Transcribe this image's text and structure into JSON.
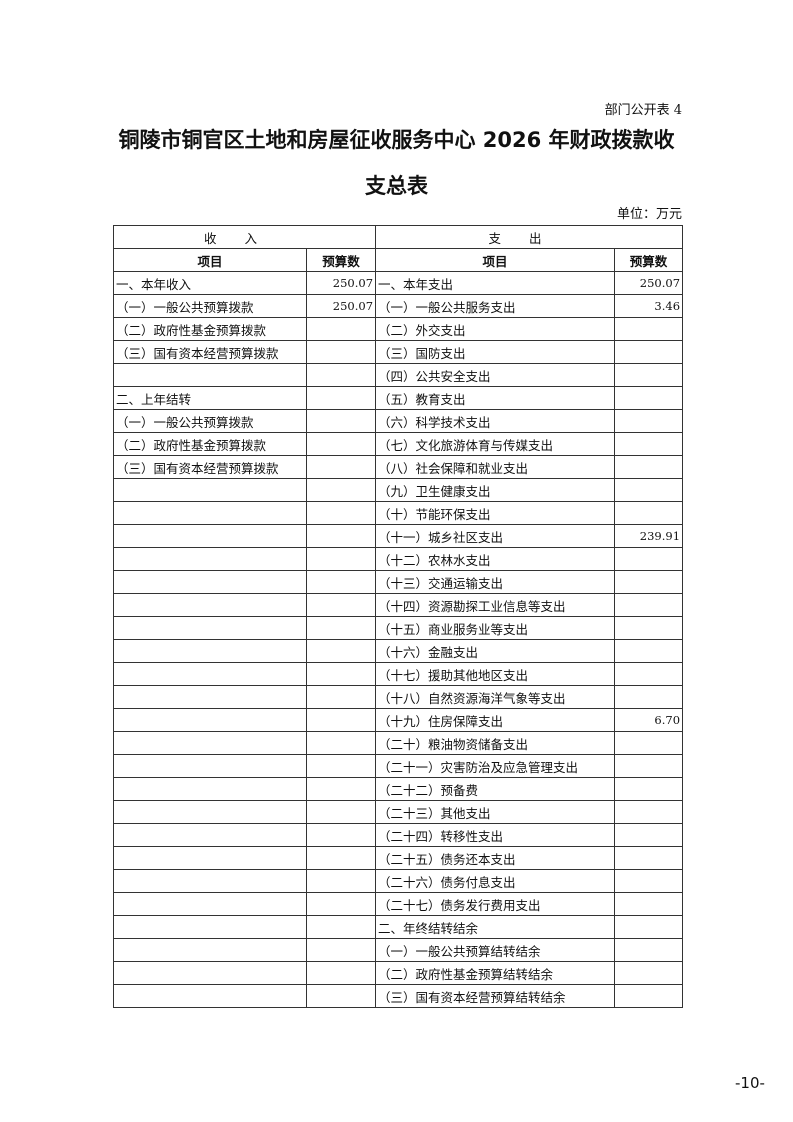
{
  "form_no": "部门公开表 4",
  "title_line1": "铜陵市铜官区土地和房屋征收服务中心 2026 年财政拨款收",
  "title_line2": "支总表",
  "unit": "单位：万元",
  "table": {
    "income_header": "收入",
    "expense_header": "支出",
    "col_item": "项目",
    "col_budget": "预算数",
    "rows": [
      {
        "in_item": "一、本年收入",
        "in_val": "250.07",
        "out_item": "一、本年支出",
        "out_val": "250.07"
      },
      {
        "in_item": "（一）一般公共预算拨款",
        "in_val": "250.07",
        "out_item": "（一）一般公共服务支出",
        "out_val": "3.46"
      },
      {
        "in_item": "（二）政府性基金预算拨款",
        "in_val": "",
        "out_item": "（二）外交支出",
        "out_val": ""
      },
      {
        "in_item": "（三）国有资本经营预算拨款",
        "in_val": "",
        "out_item": "（三）国防支出",
        "out_val": ""
      },
      {
        "in_item": "",
        "in_val": "",
        "out_item": "（四）公共安全支出",
        "out_val": ""
      },
      {
        "in_item": "二、上年结转",
        "in_val": "",
        "out_item": "（五）教育支出",
        "out_val": ""
      },
      {
        "in_item": "（一）一般公共预算拨款",
        "in_val": "",
        "out_item": "（六）科学技术支出",
        "out_val": ""
      },
      {
        "in_item": "（二）政府性基金预算拨款",
        "in_val": "",
        "out_item": "（七）文化旅游体育与传媒支出",
        "out_val": ""
      },
      {
        "in_item": "（三）国有资本经营预算拨款",
        "in_val": "",
        "out_item": "（八）社会保障和就业支出",
        "out_val": ""
      },
      {
        "in_item": "",
        "in_val": "",
        "out_item": "（九）卫生健康支出",
        "out_val": ""
      },
      {
        "in_item": "",
        "in_val": "",
        "out_item": "（十）节能环保支出",
        "out_val": ""
      },
      {
        "in_item": "",
        "in_val": "",
        "out_item": "（十一）城乡社区支出",
        "out_val": "239.91"
      },
      {
        "in_item": "",
        "in_val": "",
        "out_item": "（十二）农林水支出",
        "out_val": ""
      },
      {
        "in_item": "",
        "in_val": "",
        "out_item": "（十三）交通运输支出",
        "out_val": ""
      },
      {
        "in_item": "",
        "in_val": "",
        "out_item": "（十四）资源勘探工业信息等支出",
        "out_val": ""
      },
      {
        "in_item": "",
        "in_val": "",
        "out_item": "（十五）商业服务业等支出",
        "out_val": ""
      },
      {
        "in_item": "",
        "in_val": "",
        "out_item": "（十六）金融支出",
        "out_val": ""
      },
      {
        "in_item": "",
        "in_val": "",
        "out_item": "（十七）援助其他地区支出",
        "out_val": ""
      },
      {
        "in_item": "",
        "in_val": "",
        "out_item": "（十八）自然资源海洋气象等支出",
        "out_val": ""
      },
      {
        "in_item": "",
        "in_val": "",
        "out_item": "（十九）住房保障支出",
        "out_val": "6.70"
      },
      {
        "in_item": "",
        "in_val": "",
        "out_item": "（二十）粮油物资储备支出",
        "out_val": ""
      },
      {
        "in_item": "",
        "in_val": "",
        "out_item": "（二十一）灾害防治及应急管理支出",
        "out_val": ""
      },
      {
        "in_item": "",
        "in_val": "",
        "out_item": "（二十二）预备费",
        "out_val": ""
      },
      {
        "in_item": "",
        "in_val": "",
        "out_item": "（二十三）其他支出",
        "out_val": ""
      },
      {
        "in_item": "",
        "in_val": "",
        "out_item": "（二十四）转移性支出",
        "out_val": ""
      },
      {
        "in_item": "",
        "in_val": "",
        "out_item": "（二十五）债务还本支出",
        "out_val": ""
      },
      {
        "in_item": "",
        "in_val": "",
        "out_item": "（二十六）债务付息支出",
        "out_val": ""
      },
      {
        "in_item": "",
        "in_val": "",
        "out_item": "（二十七）债务发行费用支出",
        "out_val": ""
      },
      {
        "in_item": "",
        "in_val": "",
        "out_item": "二、年终结转结余",
        "out_val": ""
      },
      {
        "in_item": "",
        "in_val": "",
        "out_item": "（一）一般公共预算结转结余",
        "out_val": ""
      },
      {
        "in_item": "",
        "in_val": "",
        "out_item": "（二）政府性基金预算结转结余",
        "out_val": ""
      },
      {
        "in_item": "",
        "in_val": "",
        "out_item": "（三）国有资本经营预算结转结余",
        "out_val": ""
      }
    ]
  },
  "page_number": "-10-"
}
